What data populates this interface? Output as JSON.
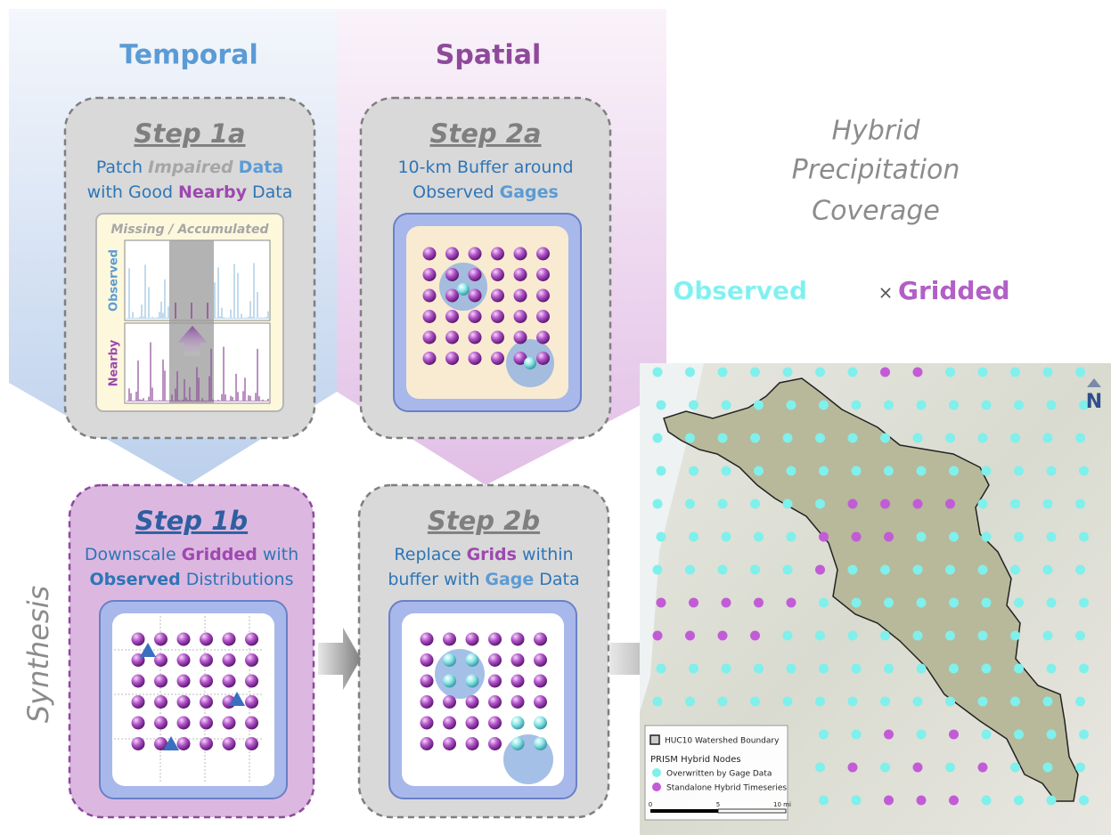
{
  "columns": {
    "temporal": "Temporal",
    "spatial": "Spatial",
    "synthesis": "Synthesis"
  },
  "steps": [
    {
      "title": "Step 1a",
      "lines": [
        [
          {
            "text": "Patch",
            "color": "#2e75b6"
          },
          {
            "text": "Impaired",
            "color": "#a6a6a6",
            "italic": true
          },
          {
            "text": "Data",
            "color": "#5b9bd5",
            "bold": true
          }
        ],
        [
          {
            "text": "with Good",
            "color": "#2e75b6"
          },
          {
            "text": "Nearby",
            "color": "#9e48b0",
            "bold": true
          },
          {
            "text": "Data",
            "color": "#2e75b6"
          }
        ]
      ]
    },
    {
      "title": "Step 2a",
      "lines": [
        [
          {
            "text": "10-km Buffer around",
            "color": "#2e75b6"
          }
        ],
        [
          {
            "text": "Observed",
            "color": "#2e75b6"
          },
          {
            "text": "Gages",
            "color": "#5b9bd5",
            "bold": true
          }
        ]
      ]
    },
    {
      "title": "Step 1b",
      "lines": [
        [
          {
            "text": "Downscale",
            "color": "#2e75b6"
          },
          {
            "text": "Gridded",
            "color": "#9e48b0",
            "bold": true
          },
          {
            "text": "with",
            "color": "#2e75b6"
          }
        ],
        [
          {
            "text": "Observed",
            "color": "#2e75b6",
            "bold": true
          },
          {
            "text": "Distributions",
            "color": "#2e75b6"
          }
        ]
      ]
    },
    {
      "title": "Step 2b",
      "lines": [
        [
          {
            "text": "Replace",
            "color": "#2e75b6"
          },
          {
            "text": "Grids",
            "color": "#9e48b0",
            "bold": true
          },
          {
            "text": "within",
            "color": "#2e75b6"
          }
        ],
        [
          {
            "text": "buffer with",
            "color": "#2e75b6"
          },
          {
            "text": "Gage",
            "color": "#5b9bd5",
            "bold": true
          },
          {
            "text": "Data",
            "color": "#2e75b6"
          }
        ]
      ]
    }
  ],
  "step1a_chart": {
    "title": "Missing / Accumulated",
    "top_label": "Observed",
    "bottom_label": "Nearby"
  },
  "summary": {
    "title_lines": [
      "Hybrid",
      "Precipitation",
      "Coverage"
    ],
    "observed": "Observed",
    "times": "×",
    "gridded": "Gridded"
  },
  "map": {
    "legend": {
      "boundary": "HUC10 Watershed Boundary",
      "group": "PRISM Hybrid Nodes",
      "overwritten": "Overwritten by Gage Data",
      "standalone": "Standalone Hybrid Timeseries"
    },
    "scale": [
      "0",
      "5",
      "10 mi"
    ],
    "north": "N"
  }
}
